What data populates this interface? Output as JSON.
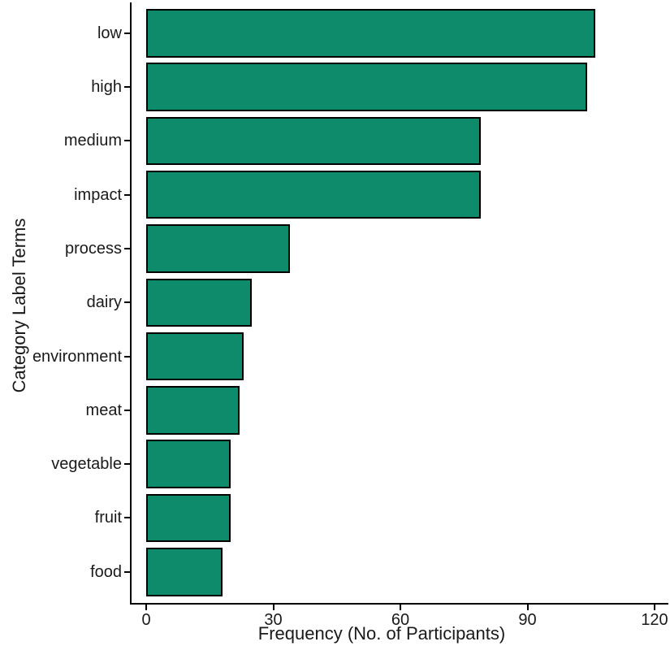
{
  "chart_data": {
    "type": "bar",
    "orientation": "horizontal",
    "title": "",
    "xlabel": "Frequency (No. of Participants)",
    "ylabel": "Category Label Terms",
    "categories": [
      "low",
      "high",
      "medium",
      "impact",
      "process",
      "dairy",
      "environment",
      "meat",
      "vegetable",
      "fruit",
      "food"
    ],
    "values": [
      106,
      104,
      79,
      79,
      34,
      25,
      23,
      22,
      20,
      20,
      18
    ],
    "x_ticks": [
      0,
      30,
      60,
      90,
      120
    ],
    "x_tick_labels": [
      "0",
      "30",
      "60",
      "90",
      "120"
    ],
    "xlim": [
      0,
      124
    ],
    "grid": false,
    "legend": null,
    "colors": {
      "bar_fill": "#0e8b6a",
      "bar_border": "#000000",
      "axis_line": "#000000",
      "text": "#1a1a1a",
      "background": "#ffffff"
    }
  }
}
